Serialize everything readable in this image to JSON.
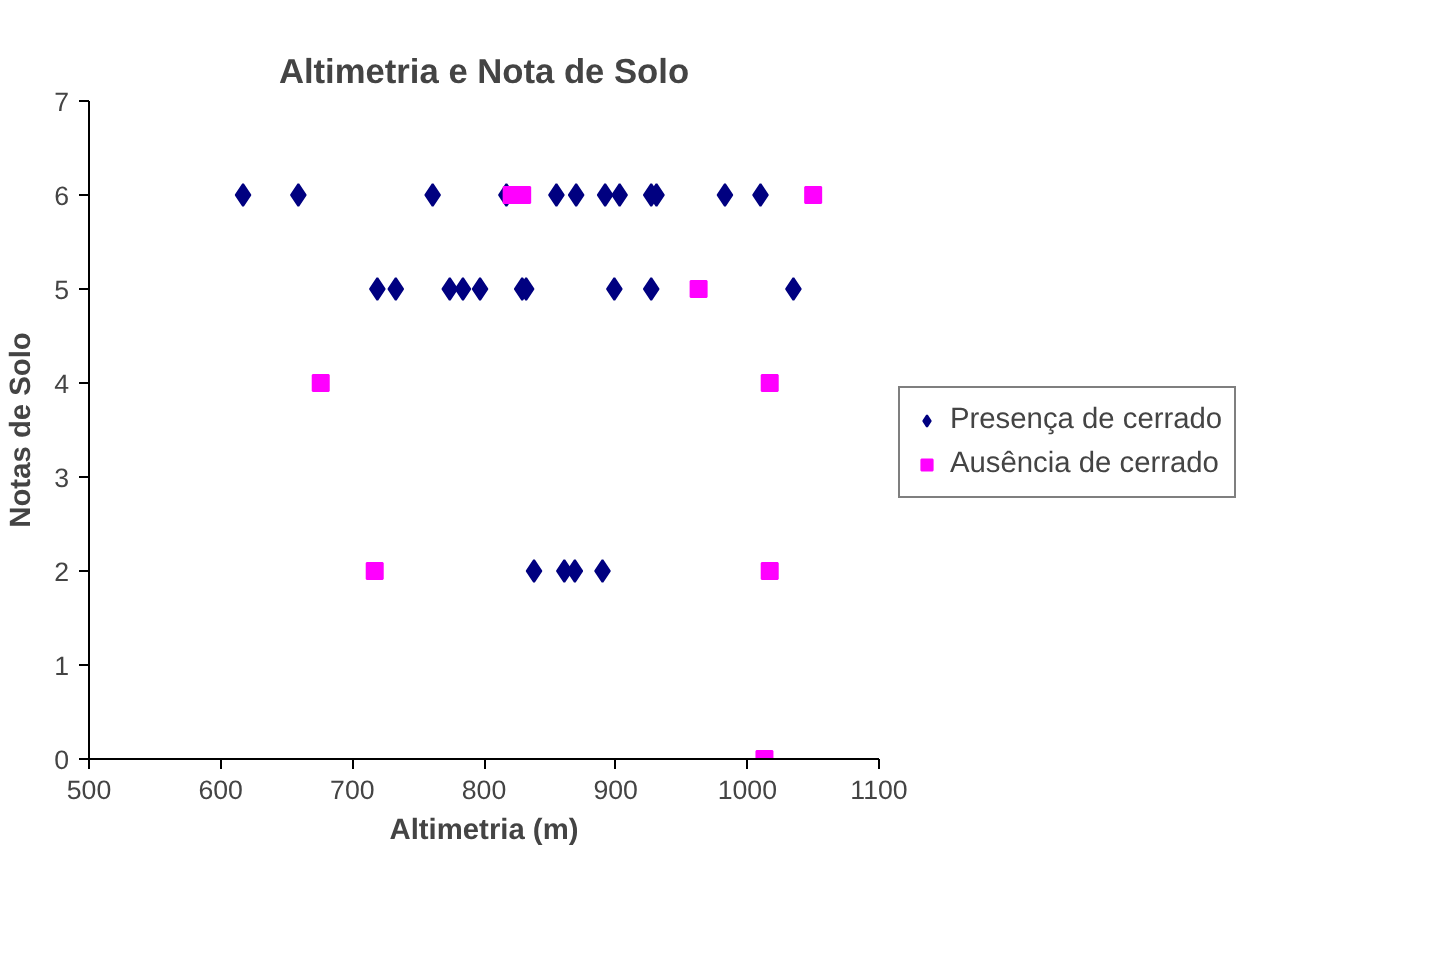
{
  "chart_data": {
    "type": "scatter",
    "title": "Altimetria e Nota de Solo",
    "xlabel": "Altimetria (m)",
    "ylabel": "Notas de Solo",
    "xlim": [
      500,
      1100
    ],
    "xticks": [
      500,
      600,
      700,
      800,
      900,
      1000,
      1100
    ],
    "ylim": [
      0,
      7
    ],
    "yticks": [
      0,
      1,
      2,
      3,
      4,
      5,
      6,
      7
    ],
    "grid": false,
    "legend": "right",
    "series": [
      {
        "name": "Presença de cerrado",
        "color": "#000080",
        "marker": "diamond",
        "x": [
          617,
          659,
          761,
          817,
          855,
          870,
          892,
          903,
          927,
          931,
          983,
          1010,
          719,
          733,
          774,
          784,
          797,
          829,
          832,
          899,
          927,
          1035,
          838,
          861,
          869,
          890
        ],
        "values": [
          6,
          6,
          6,
          6,
          6,
          6,
          6,
          6,
          6,
          6,
          6,
          6,
          5,
          5,
          5,
          5,
          5,
          5,
          5,
          5,
          5,
          5,
          2,
          2,
          2,
          2
        ]
      },
      {
        "name": "Ausência de cerrado",
        "color": "#ff00ff",
        "marker": "square",
        "x": [
          821,
          829,
          1050,
          963,
          676,
          1017,
          717,
          1017,
          1013
        ],
        "values": [
          6,
          6,
          6,
          5,
          4,
          4,
          2,
          2,
          0
        ]
      }
    ]
  }
}
